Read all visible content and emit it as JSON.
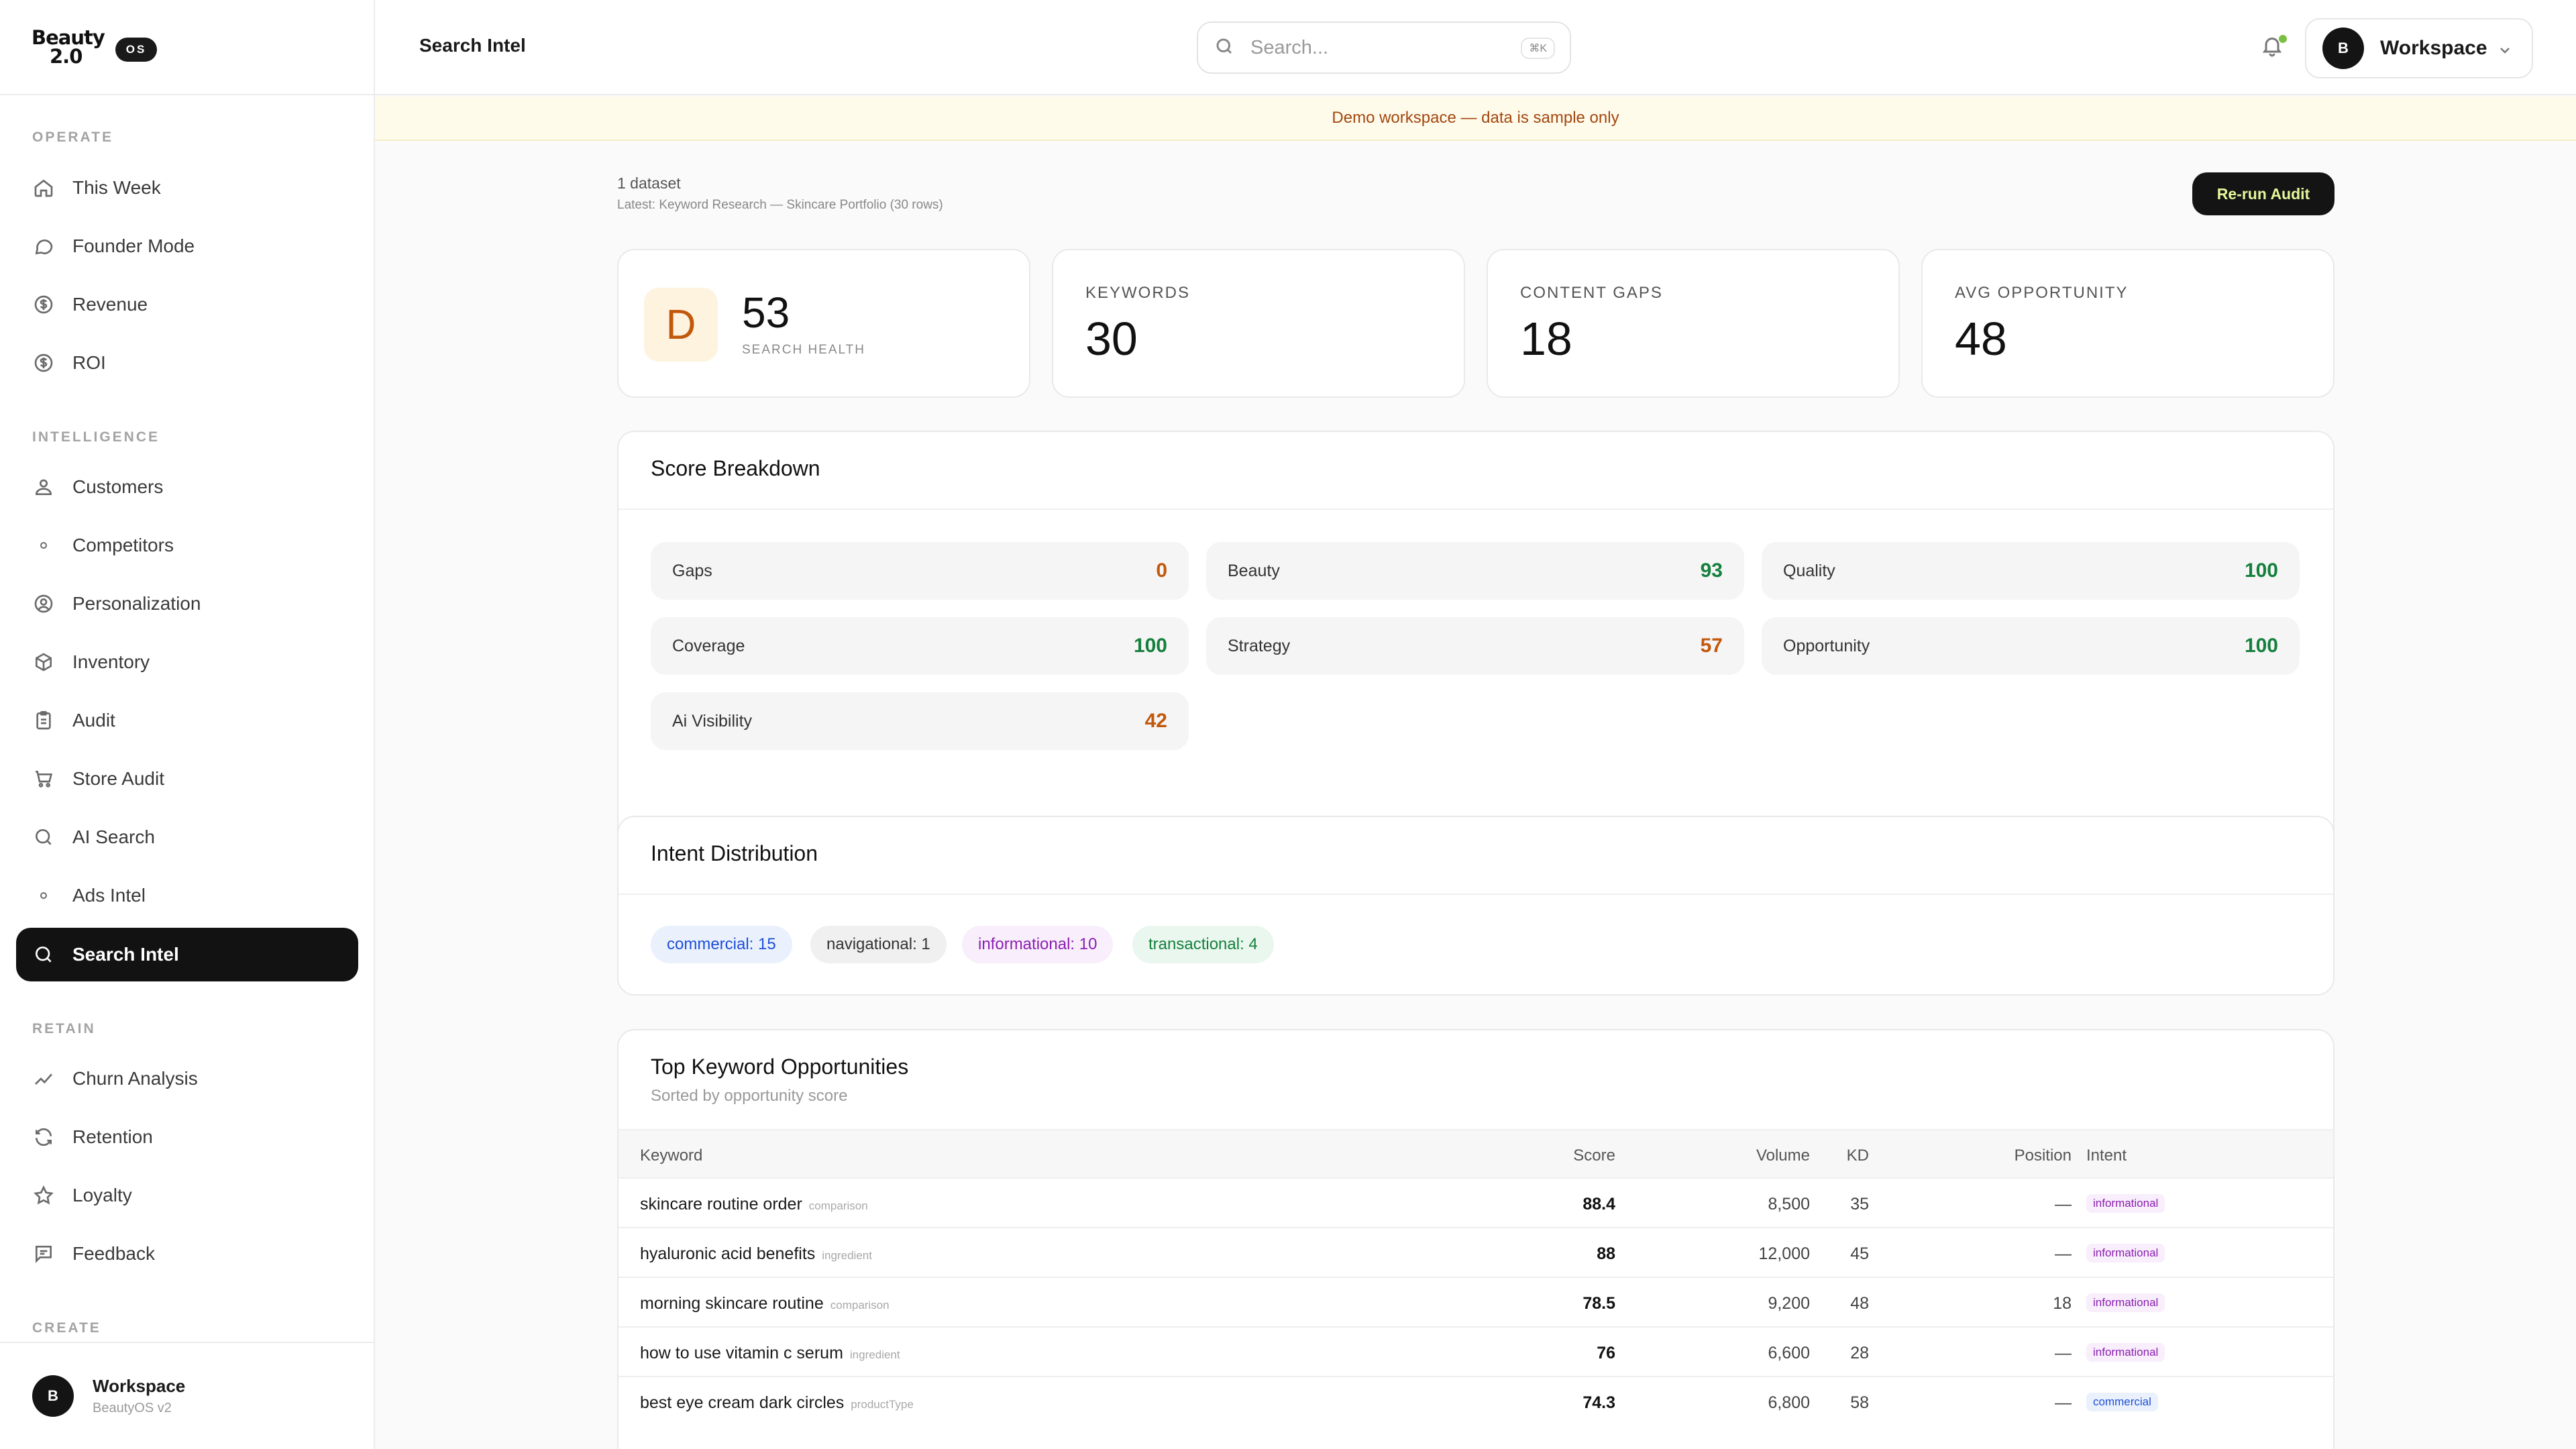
{
  "brand": {
    "logo_line1": "Beauty",
    "logo_line2": "2.0",
    "badge": "OS"
  },
  "sidebar": {
    "sections": {
      "operate": "OPERATE",
      "intelligence": "INTELLIGENCE",
      "retain": "RETAIN",
      "create": "CREATE"
    },
    "items": [
      {
        "label": "This Week",
        "icon": "home-icon"
      },
      {
        "label": "Founder Mode",
        "icon": "chat-icon"
      },
      {
        "label": "Revenue",
        "icon": "dollar-icon"
      },
      {
        "label": "ROI",
        "icon": "dollar-icon"
      },
      {
        "label": "Customers",
        "icon": "users-icon"
      },
      {
        "label": "Competitors",
        "icon": "dot-icon"
      },
      {
        "label": "Personalization",
        "icon": "user-circle-icon"
      },
      {
        "label": "Inventory",
        "icon": "box-icon"
      },
      {
        "label": "Audit",
        "icon": "clipboard-icon"
      },
      {
        "label": "Store Audit",
        "icon": "cart-icon"
      },
      {
        "label": "AI Search",
        "icon": "search-icon"
      },
      {
        "label": "Ads Intel",
        "icon": "dot-icon"
      },
      {
        "label": "Search Intel",
        "icon": "search-icon",
        "active": true
      },
      {
        "label": "Churn Analysis",
        "icon": "trend-icon"
      },
      {
        "label": "Retention",
        "icon": "refresh-icon"
      },
      {
        "label": "Loyalty",
        "icon": "star-icon"
      },
      {
        "label": "Feedback",
        "icon": "message-icon"
      }
    ],
    "footer": {
      "avatar": "B",
      "name": "Workspace",
      "sub": "BeautyOS v2"
    }
  },
  "topbar": {
    "title": "Search Intel",
    "search_placeholder": "Search...",
    "shortcut": "⌘K",
    "workspace": {
      "avatar": "B",
      "label": "Workspace"
    }
  },
  "banner": "Demo workspace — data is sample only",
  "summary": {
    "datasets": "1 dataset",
    "latest": "Latest: Keyword Research — Skincare Portfolio (30 rows)",
    "rerun": "Re-run Audit"
  },
  "stats": {
    "health": {
      "grade": "D",
      "value": "53",
      "label": "SEARCH HEALTH"
    },
    "keywords": {
      "label": "KEYWORDS",
      "value": "30"
    },
    "gaps": {
      "label": "CONTENT GAPS",
      "value": "18"
    },
    "opportunity": {
      "label": "AVG OPPORTUNITY",
      "value": "48"
    }
  },
  "score_breakdown": {
    "title": "Score Breakdown",
    "items": [
      {
        "label": "Gaps",
        "value": "0",
        "color": "#c2580c"
      },
      {
        "label": "Beauty",
        "value": "93",
        "color": "#15803d"
      },
      {
        "label": "Quality",
        "value": "100",
        "color": "#15803d"
      },
      {
        "label": "Coverage",
        "value": "100",
        "color": "#15803d"
      },
      {
        "label": "Strategy",
        "value": "57",
        "color": "#c2580c"
      },
      {
        "label": "Opportunity",
        "value": "100",
        "color": "#15803d"
      },
      {
        "label": "Ai Visibility",
        "value": "42",
        "color": "#c2580c"
      }
    ]
  },
  "intent": {
    "title": "Intent Distribution",
    "pills": [
      "commercial: 15",
      "navigational: 1",
      "informational: 10",
      "transactional: 4"
    ]
  },
  "keywords": {
    "title": "Top Keyword Opportunities",
    "subtitle": "Sorted by opportunity score",
    "headers": {
      "keyword": "Keyword",
      "score": "Score",
      "volume": "Volume",
      "kd": "KD",
      "position": "Position",
      "intent": "Intent"
    },
    "rows": [
      {
        "keyword": "skincare routine order",
        "category": "comparison",
        "score": "88.4",
        "volume": "8,500",
        "kd": "35",
        "position": "—",
        "intent": "informational"
      },
      {
        "keyword": "hyaluronic acid benefits",
        "category": "ingredient",
        "score": "88",
        "volume": "12,000",
        "kd": "45",
        "position": "—",
        "intent": "informational"
      },
      {
        "keyword": "morning skincare routine",
        "category": "comparison",
        "score": "78.5",
        "volume": "9,200",
        "kd": "48",
        "position": "18",
        "intent": "informational"
      },
      {
        "keyword": "how to use vitamin c serum",
        "category": "ingredient",
        "score": "76",
        "volume": "6,600",
        "kd": "28",
        "position": "—",
        "intent": "informational"
      },
      {
        "keyword": "best eye cream dark circles",
        "category": "productType",
        "score": "74.3",
        "volume": "6,800",
        "kd": "58",
        "position": "—",
        "intent": "commercial"
      }
    ]
  }
}
